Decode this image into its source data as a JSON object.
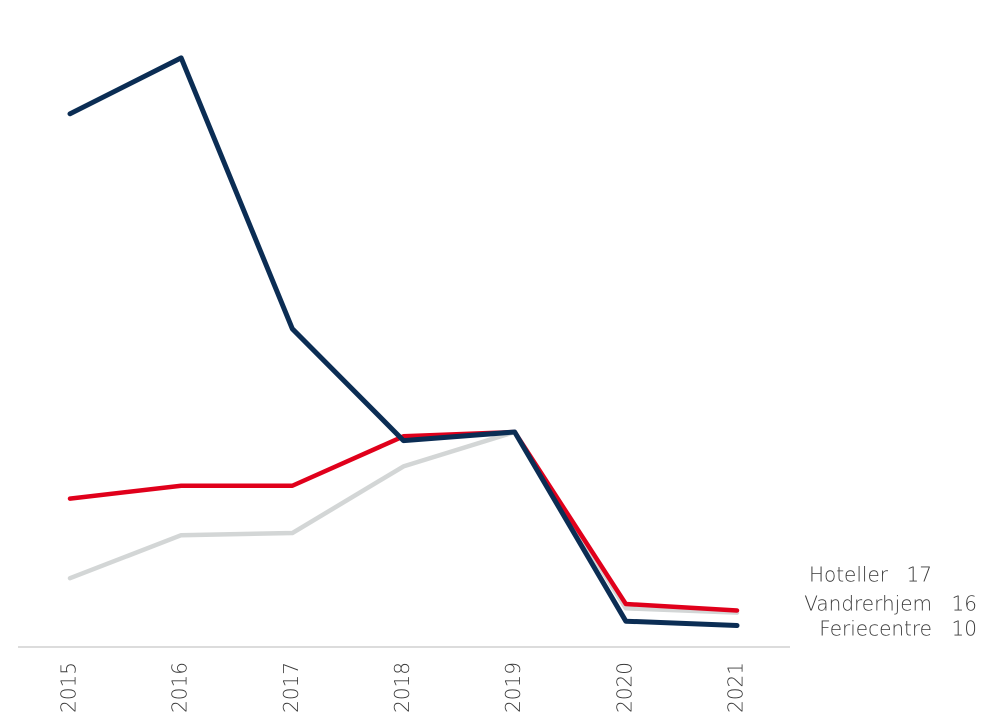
{
  "chart_data": {
    "type": "line",
    "categories": [
      "2015",
      "2016",
      "2017",
      "2018",
      "2019",
      "2020",
      "2021"
    ],
    "series": [
      {
        "name": "Vandrerhjem",
        "color": "#d3d6d6",
        "values": [
          32,
          52,
          53,
          84,
          100,
          18,
          16
        ]
      },
      {
        "name": "Hoteller",
        "color": "#e0001b",
        "values": [
          69,
          75,
          75,
          98,
          100,
          20,
          17
        ]
      },
      {
        "name": "Feriecentre",
        "color": "#0b2d54",
        "values": [
          248,
          274,
          148,
          96,
          100,
          12,
          10
        ]
      }
    ],
    "ylim": [
      0,
      280
    ]
  }
}
